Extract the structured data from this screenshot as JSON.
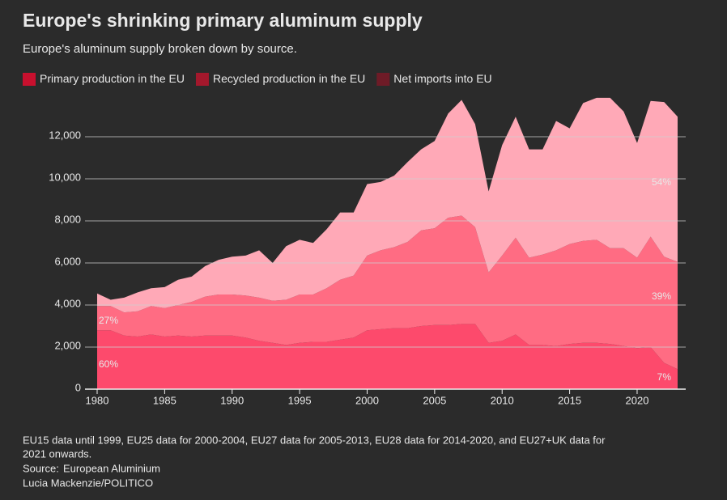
{
  "chart_data": {
    "type": "stacked-area",
    "title": "Europe's shrinking primary aluminum supply",
    "subtitle": "Europe's aluminum supply broken down by source.",
    "x": [
      1980,
      1981,
      1982,
      1983,
      1984,
      1985,
      1986,
      1987,
      1988,
      1989,
      1990,
      1991,
      1992,
      1993,
      1994,
      1995,
      1996,
      1997,
      1998,
      1999,
      2000,
      2001,
      2002,
      2003,
      2004,
      2005,
      2006,
      2007,
      2008,
      2009,
      2010,
      2011,
      2012,
      2013,
      2014,
      2015,
      2016,
      2017,
      2018,
      2019,
      2020,
      2021,
      2022,
      2023
    ],
    "series": [
      {
        "name": "Primary production in the EU",
        "color": "#fd4a6c",
        "legend_color": "#c8102e",
        "values": [
          2800,
          2800,
          2550,
          2500,
          2600,
          2500,
          2550,
          2500,
          2550,
          2550,
          2550,
          2450,
          2300,
          2200,
          2100,
          2200,
          2250,
          2250,
          2350,
          2450,
          2800,
          2850,
          2900,
          2900,
          3000,
          3050,
          3050,
          3100,
          3100,
          2200,
          2300,
          2600,
          2100,
          2100,
          2050,
          2150,
          2200,
          2200,
          2150,
          2050,
          1950,
          2000,
          1250,
          950
        ]
      },
      {
        "name": "Recycled production in the EU",
        "color": "#ff6c83",
        "legend_color": "#a3182c",
        "values": [
          1150,
          1150,
          1100,
          1200,
          1350,
          1350,
          1450,
          1650,
          1850,
          1950,
          1950,
          2000,
          2050,
          2000,
          2150,
          2300,
          2250,
          2550,
          2850,
          2950,
          3550,
          3750,
          3850,
          4100,
          4550,
          4600,
          5100,
          5150,
          4600,
          3350,
          4050,
          4600,
          4150,
          4300,
          4550,
          4750,
          4850,
          4900,
          4550,
          4650,
          4300,
          5250,
          5050,
          5100
        ]
      },
      {
        "name": "Net imports into EU",
        "color": "#ffa9b7",
        "legend_color": "#6e1b27",
        "values": [
          600,
          300,
          700,
          900,
          850,
          1000,
          1200,
          1200,
          1450,
          1650,
          1800,
          1900,
          2250,
          1800,
          2550,
          2600,
          2450,
          2800,
          3200,
          3000,
          3400,
          3250,
          3400,
          3800,
          3850,
          4150,
          4950,
          5500,
          4900,
          3850,
          5250,
          5750,
          5150,
          5000,
          6150,
          5500,
          6550,
          6750,
          7150,
          6500,
          5450,
          6450,
          7350,
          6900
        ]
      }
    ],
    "xlim": [
      1980,
      2023
    ],
    "xticks": [
      1980,
      1985,
      1990,
      1995,
      2000,
      2005,
      2010,
      2015,
      2020
    ],
    "ylim": [
      0,
      14000
    ],
    "yticks": [
      0,
      {
        "value": 2000,
        "label": "2,000"
      },
      {
        "value": 4000,
        "label": "4,000"
      },
      {
        "value": 6000,
        "label": "6,000"
      },
      {
        "value": 8000,
        "label": "8,000"
      },
      {
        "value": 10000,
        "label": "10,000"
      },
      {
        "value": 12000,
        "label": "12,000"
      }
    ],
    "grid": true,
    "annotations": [
      "60%",
      "27%",
      "54%",
      "39%",
      "7%"
    ],
    "note": "EU15 data until 1999, EU25 data for 2000-2004, EU27 data for 2005-2013, EU28 data for 2014-2020, and EU27+UK data for",
    "note_cont": "2021 onwards.",
    "source_label": "Source:",
    "source": "European Aluminium",
    "credit": "Lucia Mackenzie/POLITICO"
  }
}
